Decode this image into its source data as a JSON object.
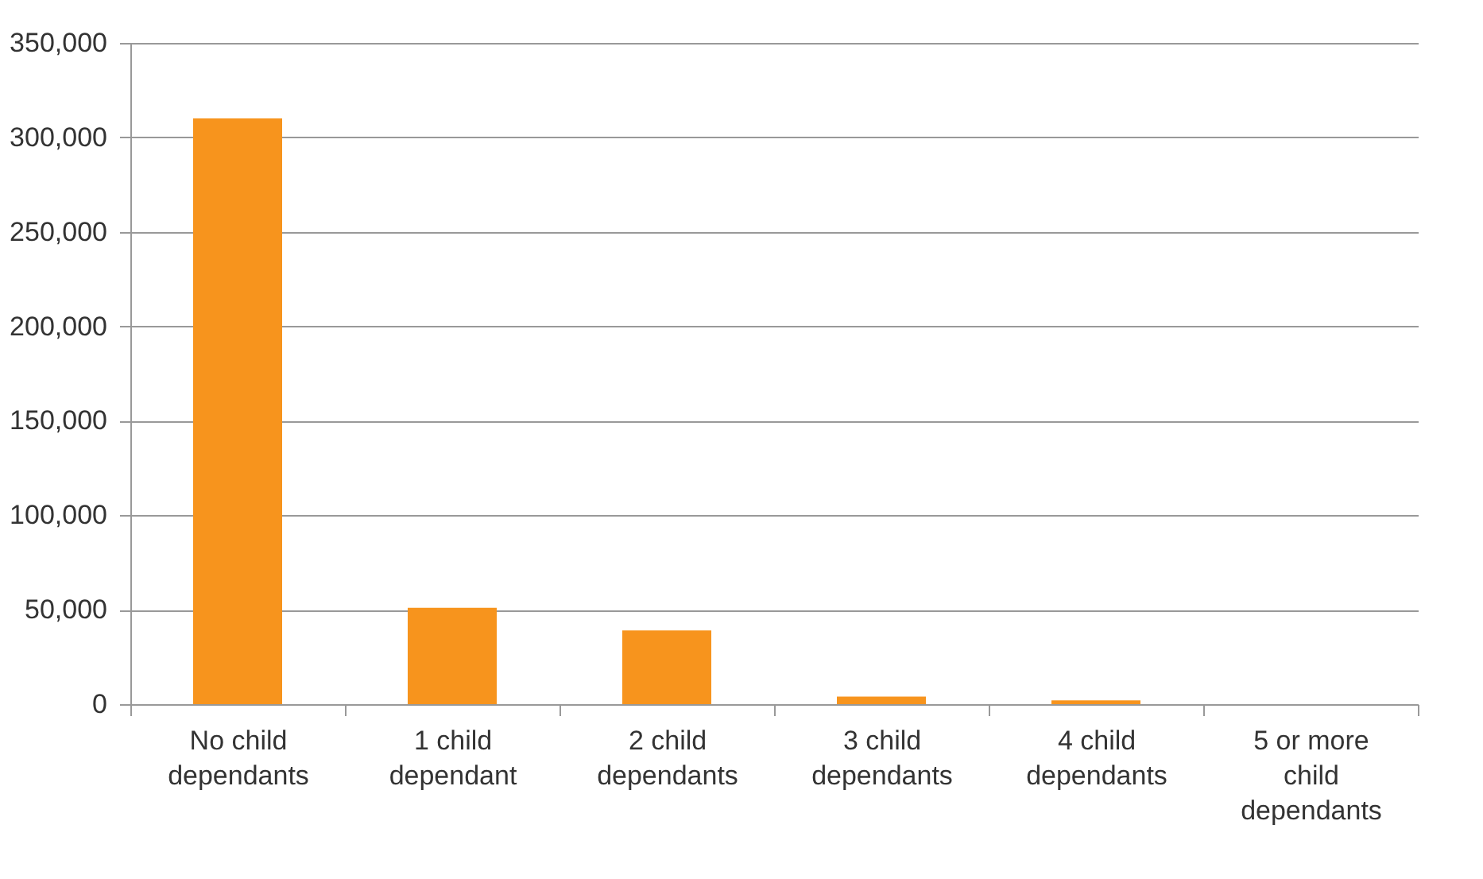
{
  "chart_data": {
    "type": "bar",
    "categories": [
      "No child dependants",
      "1 child dependant",
      "2 child dependants",
      "3 child dependants",
      "4 child dependants",
      "5 or more child dependants"
    ],
    "values": [
      310000,
      51000,
      39000,
      4000,
      2000,
      0
    ],
    "color": "#f7941d",
    "ylim": [
      0,
      350000
    ],
    "yticks": [
      0,
      {
        "value": 50000,
        "label": "50,000"
      },
      {
        "value": 100000,
        "label": "100,000"
      },
      {
        "value": 150000,
        "label": "150,000"
      },
      {
        "value": 200000,
        "label": "200,000"
      },
      {
        "value": 250000,
        "label": "250,000"
      },
      {
        "value": 300000,
        "label": "300,000"
      },
      {
        "value": 350000,
        "label": "350,000"
      }
    ],
    "grid": "y"
  }
}
